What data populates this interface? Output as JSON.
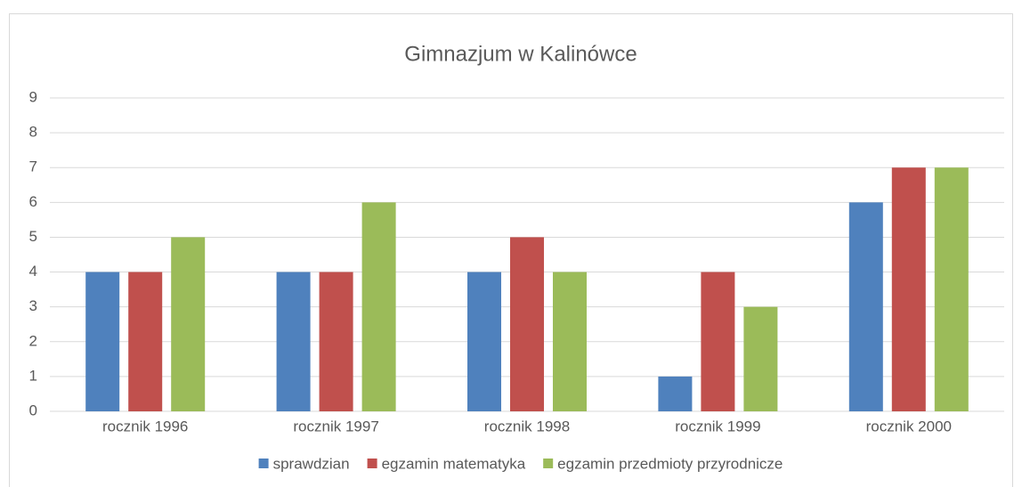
{
  "chart_data": {
    "type": "bar",
    "title": "Gimnazjum w Kalinówce",
    "categories": [
      "rocznik 1996",
      "rocznik 1997",
      "rocznik 1998",
      "rocznik 1999",
      "rocznik 2000"
    ],
    "series": [
      {
        "name": "sprawdzian",
        "color": "#4f81bd",
        "values": [
          4,
          4,
          4,
          1,
          6
        ]
      },
      {
        "name": "egzamin matematyka",
        "color": "#c0504d",
        "values": [
          4,
          4,
          5,
          4,
          7
        ]
      },
      {
        "name": "egzamin przedmioty przyrodnicze",
        "color": "#9bbb59",
        "values": [
          5,
          6,
          4,
          3,
          7
        ]
      }
    ],
    "ylim": [
      0,
      9
    ],
    "yticks": [
      0,
      1,
      2,
      3,
      4,
      5,
      6,
      7,
      8,
      9
    ],
    "grid": true,
    "legend": "bottom"
  }
}
